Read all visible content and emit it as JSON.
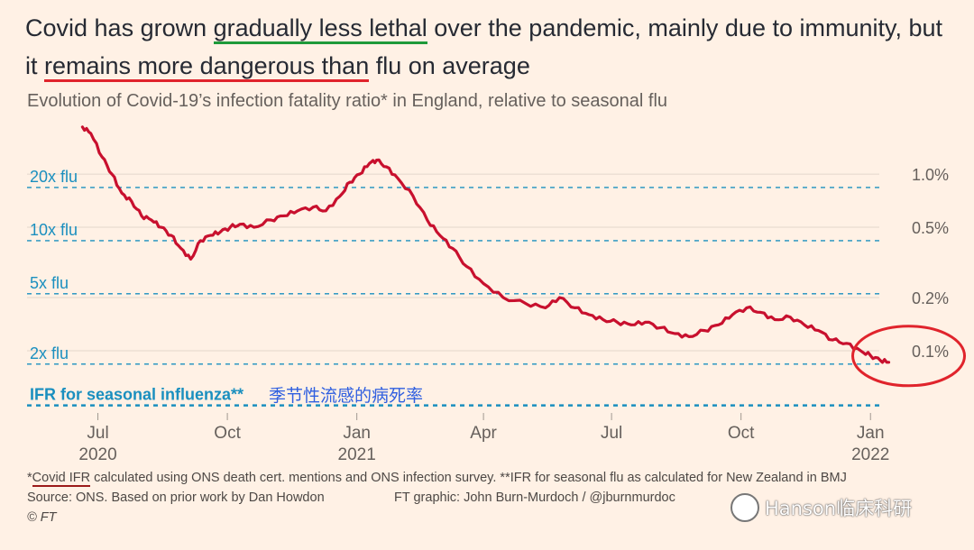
{
  "header": {
    "title_parts": [
      "Covid has grown ",
      "gradually less lethal",
      " over the pandemic, mainly due to immunity, but it ",
      "remains more dangerous than",
      " flu on average"
    ],
    "subtitle": "Evolution of Covid-19’s infection fatality ratio* in England, relative to seasonal flu"
  },
  "chart_data": {
    "type": "line",
    "y_scale": "log",
    "ylim_percent": [
      0.046,
      2.1
    ],
    "x_axis": {
      "range": [
        "2020-06-14",
        "2022-01-22"
      ],
      "ticks": [
        {
          "date": "2020-07-01",
          "label": "Jul",
          "year": "2020"
        },
        {
          "date": "2020-10-01",
          "label": "Oct",
          "year": ""
        },
        {
          "date": "2021-01-01",
          "label": "Jan",
          "year": "2021"
        },
        {
          "date": "2021-04-01",
          "label": "Apr",
          "year": ""
        },
        {
          "date": "2021-07-01",
          "label": "Jul",
          "year": ""
        },
        {
          "date": "2021-10-01",
          "label": "Oct",
          "year": ""
        },
        {
          "date": "2022-01-01",
          "label": "Jan",
          "year": "2022"
        }
      ]
    },
    "y_right_ticks": [
      {
        "value": 1.0,
        "label": "1.0%"
      },
      {
        "value": 0.5,
        "label": "0.5%"
      },
      {
        "value": 0.2,
        "label": "0.2%"
      },
      {
        "value": 0.1,
        "label": "0.1%"
      }
    ],
    "reference_lines": [
      {
        "value": 0.84,
        "label": "20x flu"
      },
      {
        "value": 0.42,
        "label": "10x flu"
      },
      {
        "value": 0.21,
        "label": "5x flu"
      },
      {
        "value": 0.084,
        "label": "2x flu"
      },
      {
        "value": 0.049,
        "label": "IFR for seasonal influenza**"
      }
    ],
    "series": [
      {
        "color": "#c8102e",
        "x": [
          "2020-06-20",
          "2020-06-26",
          "2020-07-04",
          "2020-07-11",
          "2020-07-18",
          "2020-07-25",
          "2020-08-01",
          "2020-08-08",
          "2020-08-15",
          "2020-08-22",
          "2020-08-29",
          "2020-09-05",
          "2020-09-12",
          "2020-09-19",
          "2020-09-26",
          "2020-10-03",
          "2020-10-10",
          "2020-10-20",
          "2020-11-01",
          "2020-11-10",
          "2020-11-20",
          "2020-12-01",
          "2020-12-10",
          "2020-12-20",
          "2020-12-27",
          "2021-01-03",
          "2021-01-10",
          "2021-01-15",
          "2021-01-22",
          "2021-01-30",
          "2021-02-10",
          "2021-02-20",
          "2021-03-01",
          "2021-03-10",
          "2021-03-20",
          "2021-04-01",
          "2021-04-15",
          "2021-05-01",
          "2021-05-15",
          "2021-05-25",
          "2021-06-05",
          "2021-06-15",
          "2021-06-25",
          "2021-07-05",
          "2021-07-15",
          "2021-07-25",
          "2021-08-05",
          "2021-08-15",
          "2021-08-25",
          "2021-09-05",
          "2021-09-15",
          "2021-09-25",
          "2021-10-05",
          "2021-10-15",
          "2021-10-25",
          "2021-11-05",
          "2021-11-15",
          "2021-11-25",
          "2021-12-05",
          "2021-12-15",
          "2021-12-25",
          "2022-01-01",
          "2022-01-08",
          "2022-01-14"
        ],
        "y": [
          1.85,
          1.7,
          1.25,
          1.0,
          0.78,
          0.7,
          0.58,
          0.55,
          0.5,
          0.45,
          0.38,
          0.33,
          0.42,
          0.45,
          0.47,
          0.5,
          0.52,
          0.5,
          0.55,
          0.58,
          0.62,
          0.65,
          0.62,
          0.75,
          0.9,
          1.0,
          1.15,
          1.2,
          1.1,
          0.95,
          0.75,
          0.55,
          0.45,
          0.38,
          0.3,
          0.24,
          0.2,
          0.185,
          0.175,
          0.2,
          0.175,
          0.16,
          0.15,
          0.145,
          0.14,
          0.145,
          0.135,
          0.125,
          0.12,
          0.13,
          0.14,
          0.16,
          0.175,
          0.165,
          0.15,
          0.155,
          0.14,
          0.13,
          0.115,
          0.11,
          0.1,
          0.094,
          0.088,
          0.086
        ]
      }
    ]
  },
  "annotations": {
    "chinese_label": "季节性流感的病死率",
    "highlight_circle_color": "#e0242c"
  },
  "footer": {
    "note_ul": "Covid IFR",
    "note_rest": " calculated using ONS death cert. mentions and ONS infection survey. **IFR for seasonal flu as calculated for New Zealand in BMJ",
    "note_prefix": "*",
    "source": "Source: ONS. Based on prior work by Dan Howdon",
    "credit": "FT graphic: John Burn-Murdoch / @jburnmurdoc",
    "copyright": "© FT",
    "watermark": "Hanson临床科研"
  },
  "colors": {
    "background": "#fff1e5",
    "ref_line": "#1a8fbf",
    "ref_label": "#1a8fbf",
    "grid": "#e3d7cc",
    "axis_text": "#66605c"
  }
}
